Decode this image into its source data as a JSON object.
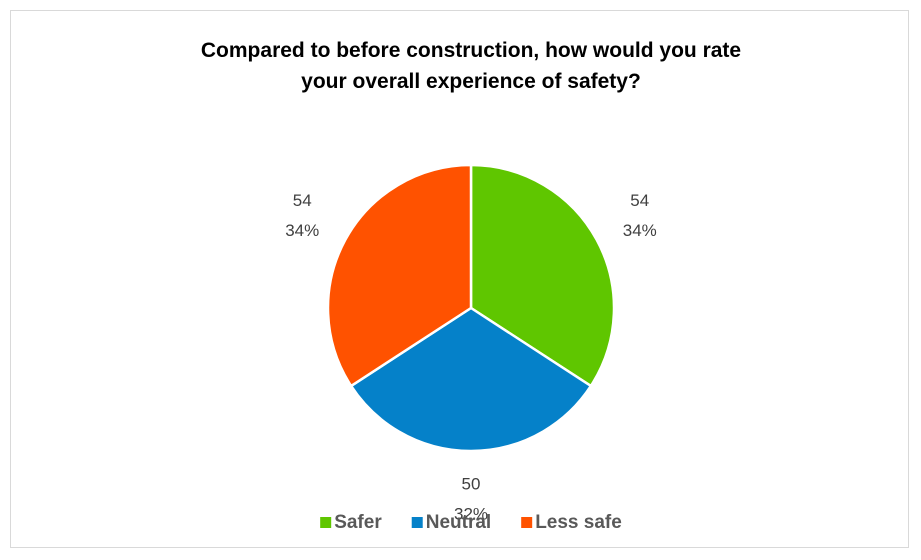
{
  "chart_data": {
    "type": "pie",
    "title": "Compared to before construction, how would you rate your overall experience of safety?",
    "categories": [
      "Safer",
      "Neutral",
      "Less safe"
    ],
    "values": [
      54,
      50,
      54
    ],
    "percentage_labels": [
      "34%",
      "32%",
      "34%"
    ],
    "colors": [
      "#5fc600",
      "#0581c9",
      "#ff5200"
    ],
    "legend": "bottom"
  }
}
